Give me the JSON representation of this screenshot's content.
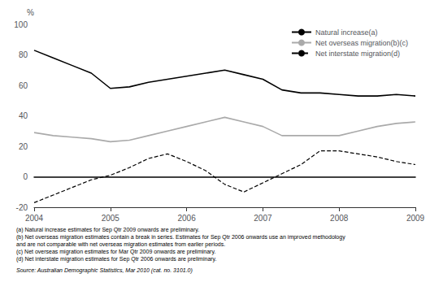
{
  "chart_data": {
    "type": "line",
    "ylabel": "%",
    "x": [
      2004,
      2004.25,
      2004.5,
      2004.75,
      2005,
      2005.25,
      2005.5,
      2005.75,
      2006,
      2006.25,
      2006.5,
      2006.75,
      2007,
      2007.25,
      2007.5,
      2007.75,
      2008,
      2008.25,
      2008.5,
      2008.75,
      2009
    ],
    "series": [
      {
        "name": "Natural increase(a)",
        "color": "#000000",
        "line_style": "solid",
        "values": [
          83,
          78,
          73,
          68,
          58,
          59,
          62,
          64,
          66,
          68,
          70,
          67,
          64,
          57,
          55,
          55,
          54,
          53,
          53,
          54,
          53
        ]
      },
      {
        "name": "Net overseas migration(b)(c)",
        "color": "#aaaaaa",
        "line_style": "solid",
        "values": [
          29,
          27,
          26,
          25,
          23,
          24,
          27,
          30,
          33,
          36,
          39,
          36,
          33,
          27,
          27,
          27,
          27,
          30,
          33,
          35,
          36
        ]
      },
      {
        "name": "Net interstate migration(d)",
        "color": "#000000",
        "line_style": "dashed",
        "values": [
          -17,
          -12,
          -7,
          -2,
          1,
          6,
          12,
          15,
          10,
          4,
          -5,
          -10,
          -4,
          2,
          8,
          17,
          17,
          15,
          13,
          10,
          8
        ]
      }
    ],
    "xlim": [
      2004,
      2009
    ],
    "xticks": [
      2004,
      2005,
      2006,
      2007,
      2008,
      2009
    ],
    "ylim": [
      -20,
      100
    ],
    "yticks": [
      -20,
      0,
      20,
      40,
      60,
      80,
      100
    ],
    "grid": false,
    "legend": "upper right",
    "footnotes": [
      "(a) Natural increase estimates for Sep Qtr 2009 onwards are preliminary.",
      "(b) Net overseas migration estimates contain a break in series. Estimates for Sep Qtr 2006 onwards use an improved methodology",
      "and are not comparable with net overseas migration estimates from earlier periods.",
      "(c) Net overseas migration estimates for Mar Qtr 2009 onwards are preliminary.",
      "(d) Net interstate migration estimates for Sep Qtr 2006 onwards are preliminary."
    ],
    "source": "Source: Australian Demographic Statistics, Mar 2010 (cat. no. 3101.0)"
  }
}
